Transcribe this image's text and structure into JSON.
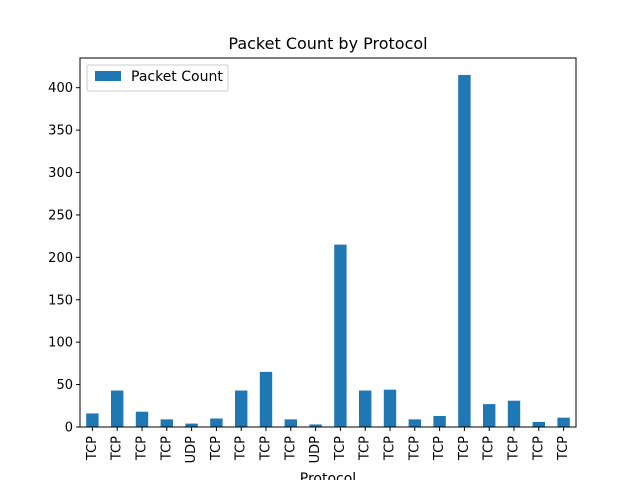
{
  "chart_data": {
    "type": "bar",
    "title": "Packet Count by Protocol",
    "xlabel": "Protocol",
    "ylabel": "",
    "categories": [
      "TCP",
      "TCP",
      "TCP",
      "TCP",
      "UDP",
      "TCP",
      "TCP",
      "TCP",
      "TCP",
      "UDP",
      "TCP",
      "TCP",
      "TCP",
      "TCP",
      "TCP",
      "TCP",
      "TCP",
      "TCP",
      "TCP",
      "TCP"
    ],
    "series": [
      {
        "name": "Packet Count",
        "color": "#1f77b4",
        "values": [
          16,
          43,
          18,
          9,
          4,
          10,
          43,
          65,
          9,
          3,
          215,
          43,
          44,
          9,
          13,
          415,
          27,
          31,
          6,
          11
        ]
      }
    ],
    "ylim": [
      0,
      435
    ],
    "yticks": [
      0,
      50,
      100,
      150,
      200,
      250,
      300,
      350,
      400
    ],
    "legend": {
      "placement": "top-left",
      "entries": [
        "Packet Count"
      ]
    },
    "grid": false
  }
}
